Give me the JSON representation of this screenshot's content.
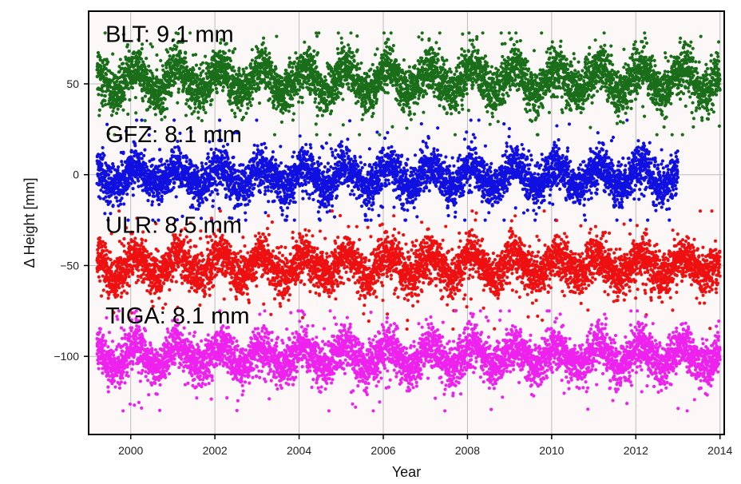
{
  "chart_data": {
    "type": "scatter",
    "title": "",
    "xlabel": "Year",
    "ylabel": "Δ Height [mm]",
    "xlim": [
      1999,
      2014.1
    ],
    "ylim": [
      -143,
      90
    ],
    "x_ticks": [
      2000,
      2002,
      2004,
      2006,
      2008,
      2010,
      2012,
      2014
    ],
    "y_ticks": [
      -100,
      -50,
      0,
      50
    ],
    "grid": true,
    "legend": "none",
    "background_color": "#fcf8f8",
    "x_start": 1999.2,
    "x_end": 2014.0,
    "annotations": [
      {
        "text": "BLT: 9.1 mm",
        "x": 1999.4,
        "y": 73
      },
      {
        "text": "GFZ: 8.1 mm",
        "x": 1999.4,
        "y": 18
      },
      {
        "text": "ULR: 8.5 mm",
        "x": 1999.4,
        "y": -32
      },
      {
        "text": "TIGA: 8.1 mm",
        "x": 1999.4,
        "y": -82
      }
    ],
    "series": [
      {
        "color": "#1a6e1a",
        "x_start": 1999.2,
        "x_end": 2014.0,
        "baseline": 52,
        "scatter_sd": 9.1,
        "seasonal_amplitude": 7,
        "range": [
          22,
          78
        ]
      },
      {
        "color": "#1010e0",
        "x_start": 1999.2,
        "x_end": 2013.0,
        "baseline": -1,
        "scatter_sd": 8.1,
        "seasonal_amplitude": 6,
        "range": [
          -25,
          30
        ]
      },
      {
        "color": "#ee1111",
        "x_start": 1999.2,
        "x_end": 2014.0,
        "baseline": -50,
        "scatter_sd": 8.5,
        "seasonal_amplitude": 6,
        "range": [
          -85,
          -20
        ]
      },
      {
        "color": "#ee22ee",
        "x_start": 1999.2,
        "x_end": 2014.0,
        "baseline": -100,
        "scatter_sd": 8.1,
        "seasonal_amplitude": 6,
        "range": [
          -130,
          -75
        ]
      }
    ]
  }
}
